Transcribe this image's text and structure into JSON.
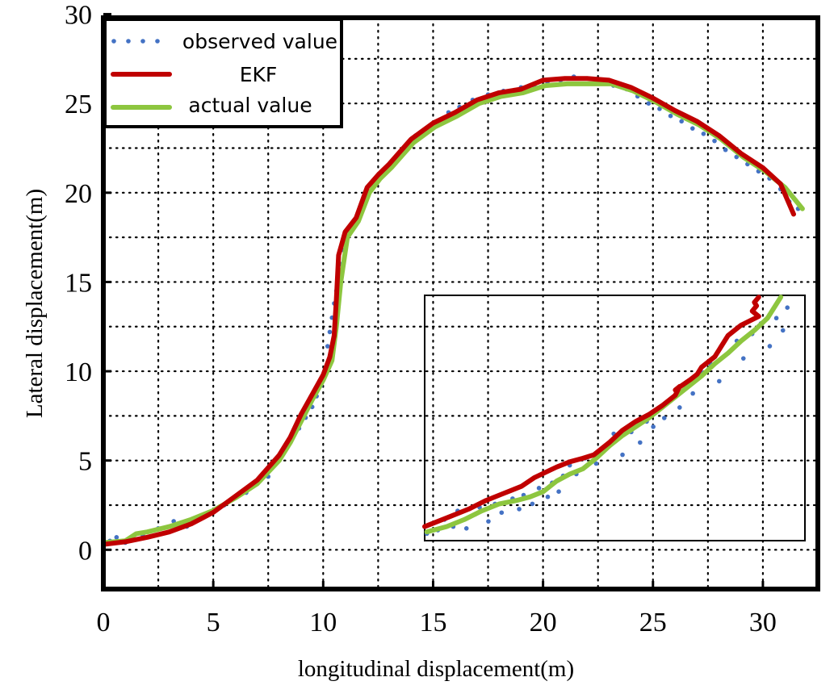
{
  "chart_data": {
    "type": "line",
    "title": "",
    "xlabel": "longitudinal displacement(m)",
    "ylabel": "Lateral displacement(m)",
    "xlim": [
      0,
      32.5
    ],
    "ylim": [
      -2.2,
      29.8
    ],
    "xticks": [
      "0",
      "5",
      "10",
      "15",
      "20",
      "25",
      "30"
    ],
    "xtick_values": [
      0,
      5,
      10,
      15,
      20,
      25,
      30
    ],
    "yticks": [
      "0",
      "5",
      "10",
      "15",
      "20",
      "25",
      "30"
    ],
    "ytick_values": [
      0,
      5,
      10,
      15,
      20,
      25,
      30
    ],
    "grid": true,
    "grid_step": 2.5,
    "legend_position": "top-left",
    "series": [
      {
        "name": "observed value",
        "style": "dots",
        "color": "#4472C4",
        "x": [
          0,
          0.3,
          0.6,
          1.0,
          1.8,
          2.5,
          3.2,
          3.8,
          4.2,
          4.6,
          5.0,
          5.5,
          6.0,
          6.5,
          7.0,
          7.5,
          7.8,
          8.0,
          8.3,
          8.6,
          8.9,
          9.2,
          9.5,
          9.7,
          9.9,
          10.1,
          10.2,
          10.3,
          10.4,
          10.5,
          10.6,
          10.7,
          10.8,
          10.9,
          11.0,
          11.3,
          11.6,
          12.0,
          12.3,
          12.7,
          13.0,
          13.4,
          13.8,
          14.2,
          14.7,
          15.2,
          15.7,
          16.2,
          16.8,
          17.5,
          18.2,
          19.0,
          19.6,
          20.2,
          20.8,
          21.4,
          22.0,
          22.6,
          23.2,
          23.8,
          24.3,
          24.8,
          25.3,
          25.8,
          26.3,
          26.8,
          27.3,
          27.8,
          28.3,
          28.8,
          29.3,
          29.8,
          30.3,
          30.8,
          31.2,
          31.6
        ],
        "y": [
          0.6,
          0.5,
          0.7,
          0.4,
          0.8,
          1.2,
          1.6,
          1.3,
          1.8,
          2.0,
          2.2,
          2.5,
          2.9,
          3.2,
          3.7,
          4.1,
          4.8,
          5.2,
          5.9,
          6.3,
          6.8,
          7.4,
          8.0,
          8.6,
          9.2,
          10.0,
          11.4,
          12.2,
          13.0,
          13.8,
          14.5,
          15.2,
          16.0,
          16.8,
          17.6,
          18.1,
          18.7,
          19.8,
          20.5,
          21.0,
          21.4,
          22.0,
          22.7,
          23.2,
          23.6,
          24.0,
          24.5,
          24.8,
          25.2,
          25.5,
          25.7,
          25.9,
          26.0,
          26.2,
          26.3,
          26.5,
          26.4,
          26.2,
          26.0,
          25.8,
          25.4,
          25.0,
          24.7,
          24.3,
          24.0,
          23.6,
          23.3,
          22.9,
          22.4,
          22.0,
          21.6,
          21.2,
          20.8,
          20.2,
          19.5,
          19.1
        ]
      },
      {
        "name": "EKF",
        "style": "line",
        "color": "#C00000",
        "x": [
          0,
          1,
          2,
          3,
          4,
          5,
          6,
          7,
          8,
          8.5,
          9,
          9.5,
          10,
          10.3,
          10.5,
          10.6,
          10.7,
          11,
          11.5,
          12,
          12.5,
          13,
          13.5,
          14,
          15,
          16,
          17,
          18,
          19,
          20,
          21,
          22,
          23,
          24,
          25,
          26,
          27,
          28,
          29,
          30,
          30.8,
          31.4
        ],
        "y": [
          0.3,
          0.45,
          0.7,
          1.0,
          1.45,
          2.1,
          3.0,
          3.9,
          5.3,
          6.3,
          7.6,
          8.7,
          9.8,
          10.8,
          12.0,
          14.0,
          16.5,
          17.8,
          18.6,
          20.3,
          21.0,
          21.6,
          22.3,
          23.0,
          23.9,
          24.5,
          25.2,
          25.6,
          25.8,
          26.3,
          26.4,
          26.4,
          26.3,
          25.9,
          25.3,
          24.6,
          24.0,
          23.2,
          22.2,
          21.4,
          20.5,
          18.8
        ]
      },
      {
        "name": "actual value",
        "style": "line",
        "color": "#8DC63F",
        "x": [
          0,
          1,
          1.5,
          2,
          3,
          4,
          5,
          6,
          7,
          8,
          8.5,
          9,
          9.5,
          10,
          10.4,
          10.6,
          10.8,
          11.1,
          11.6,
          12.1,
          12.6,
          13.1,
          13.6,
          14.1,
          15.1,
          16.1,
          17.1,
          18.1,
          19.1,
          20.1,
          21.1,
          22.1,
          23.1,
          24.1,
          25.1,
          26.1,
          27.1,
          28.1,
          29.1,
          30.1,
          31.0,
          31.8
        ],
        "y": [
          0.4,
          0.5,
          0.9,
          1.0,
          1.3,
          1.7,
          2.2,
          2.9,
          3.7,
          5.0,
          6.0,
          7.2,
          8.4,
          9.5,
          10.6,
          12.5,
          15.0,
          17.5,
          18.4,
          20.0,
          20.8,
          21.4,
          22.1,
          22.8,
          23.7,
          24.3,
          25.0,
          25.4,
          25.6,
          26.0,
          26.1,
          26.1,
          26.1,
          25.7,
          25.1,
          24.4,
          23.8,
          23.0,
          22.0,
          21.2,
          20.3,
          19.1
        ]
      }
    ],
    "inset": {
      "description_xlim": [
        15.0,
        32.3
      ],
      "description_ylim": [
        0.5,
        14.5
      ],
      "series": [
        {
          "name": "observed value",
          "style": "dots",
          "color": "#4472C4",
          "x": [
            15.1,
            15.6,
            15.9,
            16.3,
            16.5,
            16.9,
            17.3,
            17.5,
            17.9,
            18.2,
            18.5,
            19.0,
            19.3,
            19.5,
            19.9,
            20.2,
            20.6,
            20.8,
            21.1,
            21.3,
            21.6,
            21.9,
            22.3,
            22.8,
            23.4,
            23.6,
            24.0,
            24.4,
            24.8,
            25.1,
            25.4,
            25.9,
            26.3,
            26.6,
            26.8,
            27.2,
            27.6,
            28.0,
            28.4,
            28.8,
            29.2,
            29.5,
            29.9,
            30.3,
            30.7,
            31.0,
            31.3,
            31.5
          ],
          "y": [
            0.9,
            1.1,
            1.7,
            1.3,
            2.2,
            1.2,
            2.0,
            2.4,
            1.6,
            2.6,
            2.1,
            2.9,
            2.3,
            3.1,
            2.6,
            3.5,
            3.0,
            3.8,
            3.3,
            4.2,
            4.8,
            4.3,
            5.2,
            4.9,
            5.9,
            6.6,
            5.4,
            6.7,
            6.1,
            7.3,
            7.0,
            7.5,
            8.6,
            8.1,
            9.4,
            8.9,
            10.1,
            10.6,
            9.6,
            11.2,
            11.9,
            10.9,
            12.3,
            12.9,
            11.6,
            13.2,
            12.5,
            13.8
          ]
        },
        {
          "name": "EKF",
          "style": "line",
          "color": "#C00000",
          "x": [
            15.0,
            16.0,
            17.0,
            17.8,
            18.6,
            19.4,
            20.0,
            20.5,
            21.0,
            21.6,
            22.2,
            22.7,
            23.4,
            24.0,
            24.6,
            25.2,
            25.8,
            26.4,
            26.6,
            26.4,
            27.1,
            27.4,
            27.6,
            28.2,
            28.5,
            28.8,
            29.4,
            30.2,
            29.9,
            30.1,
            30.0,
            30.2
          ],
          "y": [
            1.3,
            1.8,
            2.3,
            2.8,
            3.2,
            3.6,
            4.1,
            4.4,
            4.7,
            5.0,
            5.2,
            5.4,
            6.1,
            6.8,
            7.3,
            7.7,
            8.2,
            8.8,
            9.3,
            9.1,
            9.7,
            10.0,
            10.4,
            11.0,
            11.6,
            12.2,
            12.8,
            13.3,
            13.6,
            13.9,
            14.1,
            14.4
          ]
        },
        {
          "name": "actual value",
          "style": "line",
          "color": "#8DC63F",
          "x": [
            15.1,
            16.0,
            16.8,
            17.6,
            18.4,
            19.2,
            19.8,
            20.4,
            21.0,
            21.6,
            22.2,
            22.8,
            23.4,
            24.0,
            24.6,
            25.2,
            25.8,
            26.4,
            27.0,
            27.6,
            28.2,
            28.8,
            29.4,
            30.0,
            30.6,
            31.2
          ],
          "y": [
            1.0,
            1.3,
            1.7,
            2.2,
            2.6,
            2.8,
            3.0,
            3.3,
            3.9,
            4.3,
            4.6,
            5.2,
            5.9,
            6.5,
            7.0,
            7.5,
            8.1,
            8.7,
            9.3,
            9.9,
            10.6,
            11.2,
            11.9,
            12.5,
            13.2,
            14.4
          ]
        }
      ]
    }
  }
}
